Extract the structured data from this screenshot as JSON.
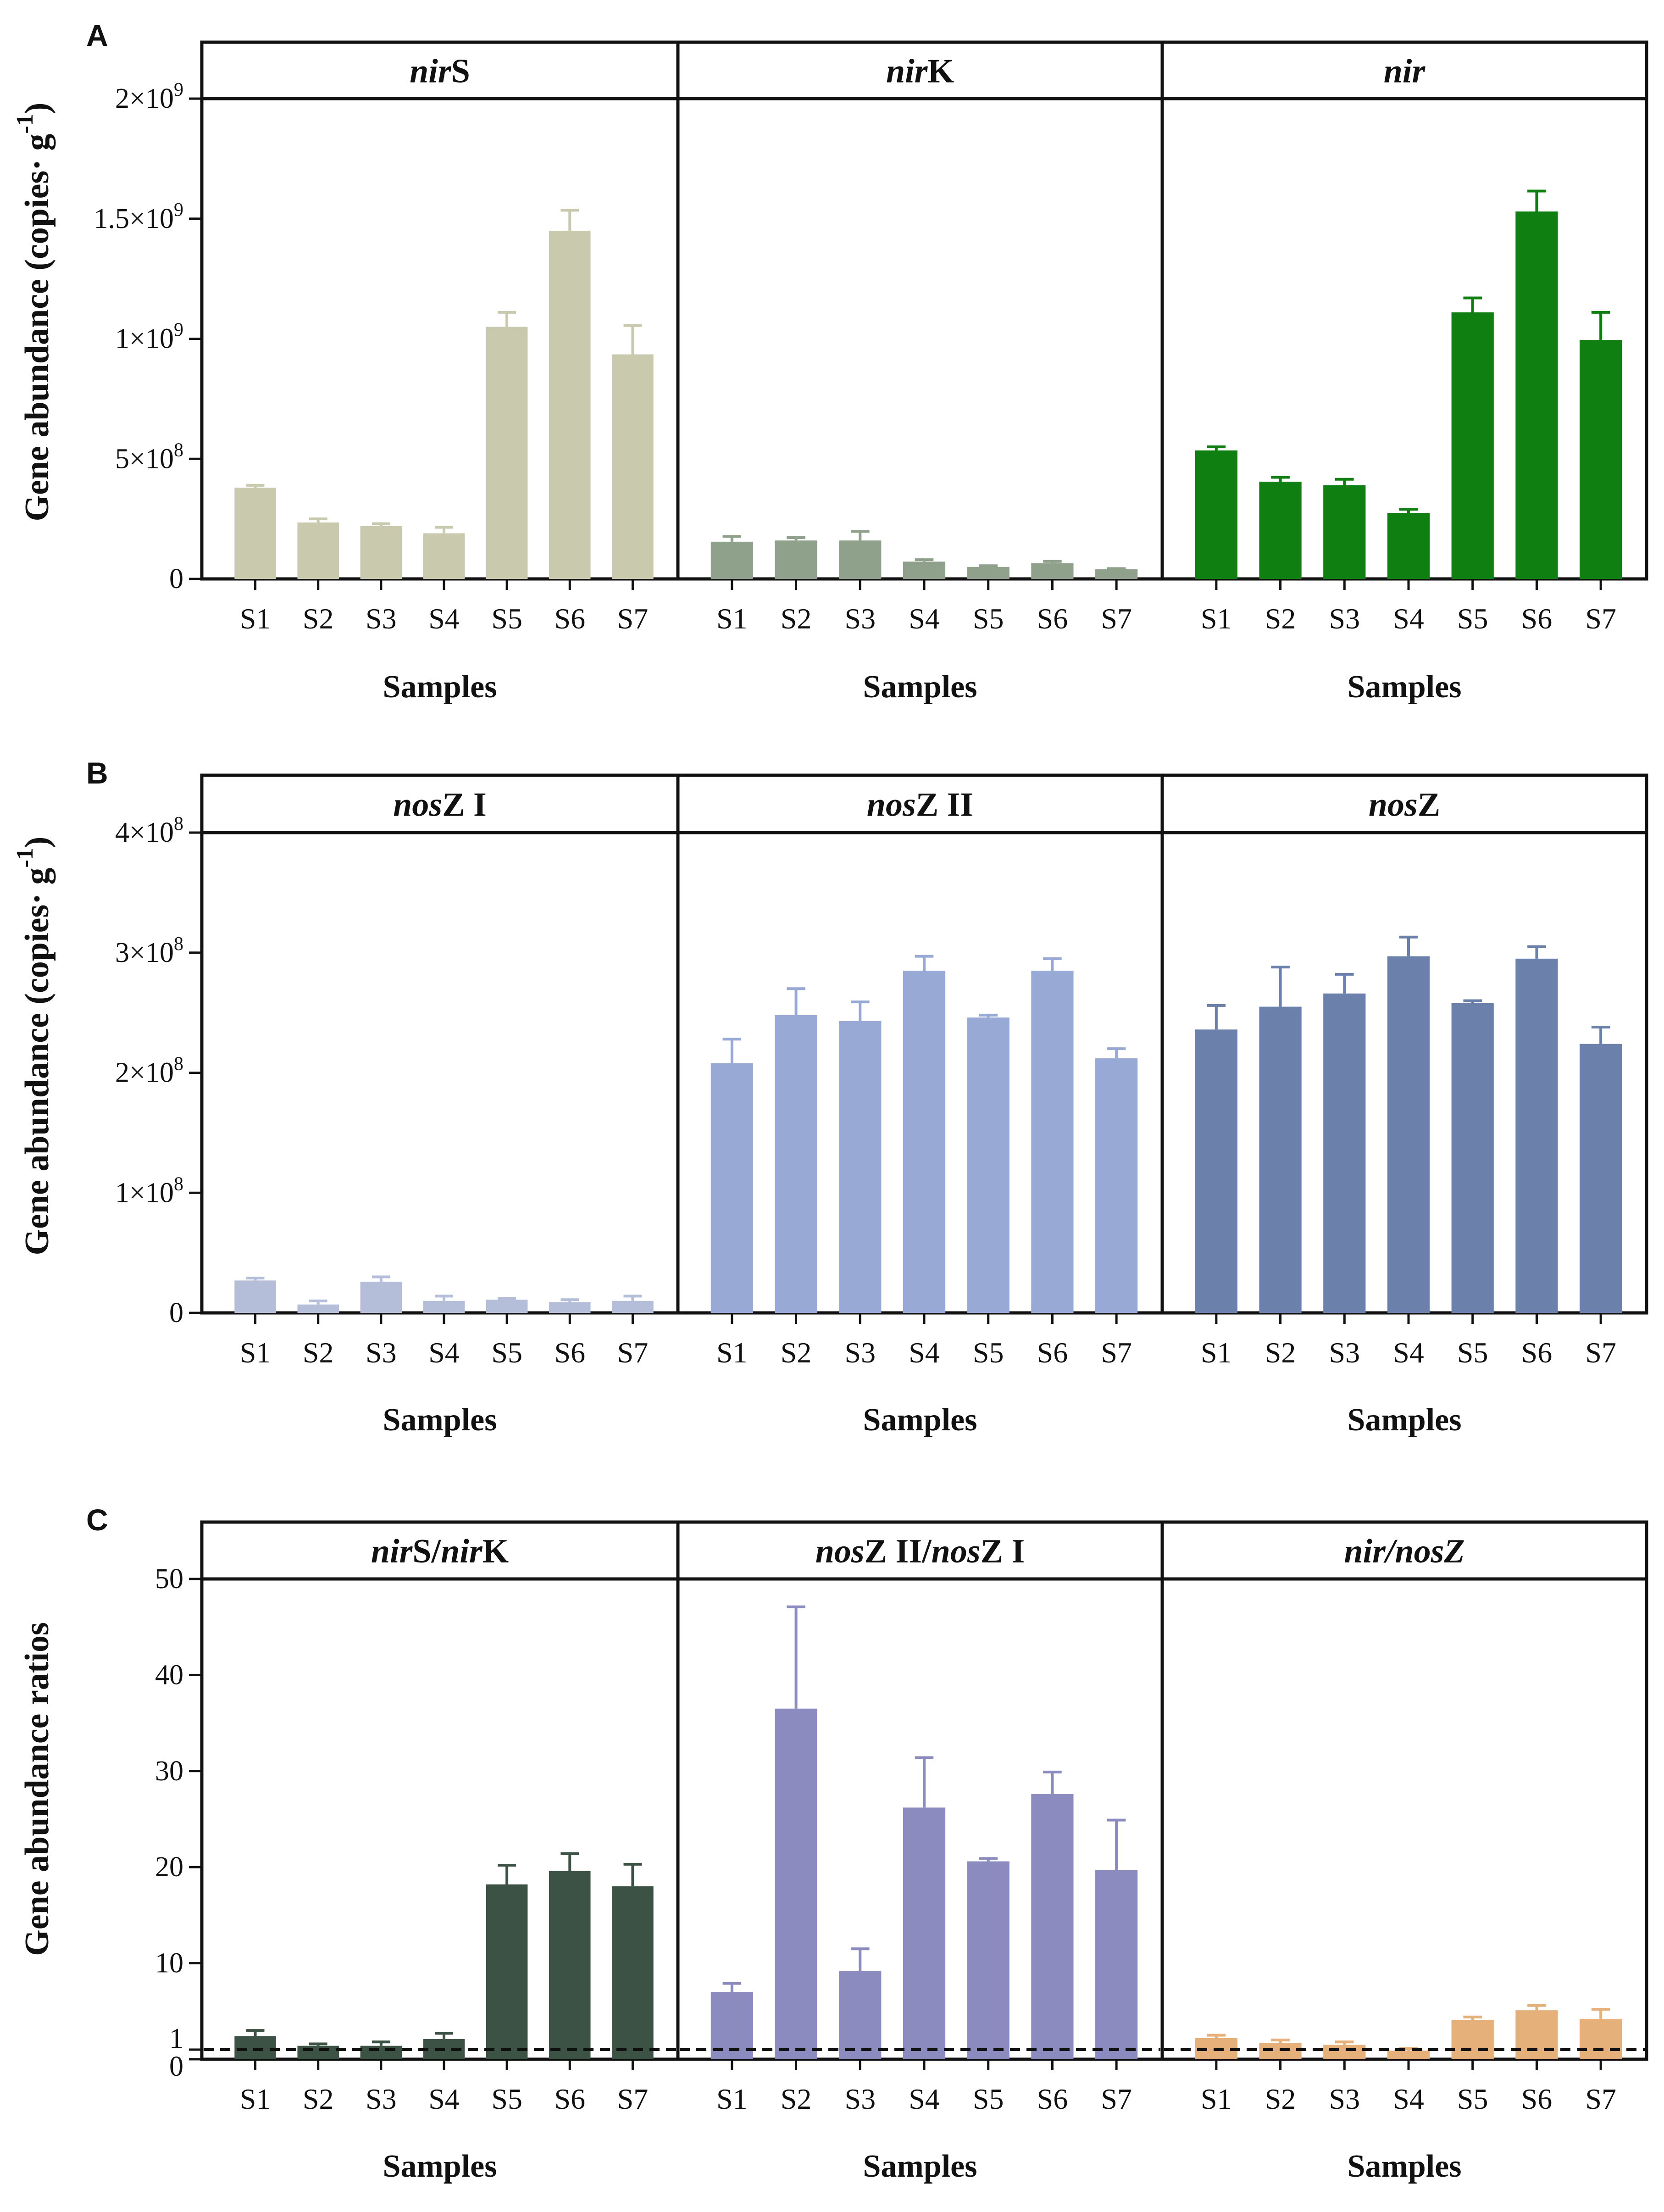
{
  "chart_data": [
    {
      "type": "bar",
      "panel": "A",
      "ylabel_main": "Gene abundance (copies· g",
      "ylabel_sup": "-1",
      "ylabel_close": ")",
      "ylim": [
        0,
        2000000000
      ],
      "yticks": [
        {
          "value": 0,
          "base": "0",
          "exp": ""
        },
        {
          "value": 500000000,
          "base": "5×10",
          "exp": "8"
        },
        {
          "value": 1000000000,
          "base": "1×10",
          "exp": "9"
        },
        {
          "value": 1500000000,
          "base": "1.5×10",
          "exp": "9"
        },
        {
          "value": 2000000000,
          "base": "2×10",
          "exp": "9"
        }
      ],
      "categories": [
        "S1",
        "S2",
        "S3",
        "S4",
        "S5",
        "S6",
        "S7"
      ],
      "xlabel": "Samples",
      "series": [
        {
          "name": "nirS",
          "label_italic": "nir",
          "label_plain": "S",
          "color": "#c9c9ad",
          "values": [
            380000000,
            235000000,
            220000000,
            190000000,
            1050000000,
            1450000000,
            935000000
          ],
          "errors": [
            10000000,
            15000000,
            10000000,
            25000000,
            60000000,
            85000000,
            120000000
          ]
        },
        {
          "name": "nirK",
          "label_italic": "nir",
          "label_plain": "K",
          "color": "#8fa08b",
          "values": [
            155000000,
            160000000,
            160000000,
            72000000,
            50000000,
            65000000,
            40000000
          ],
          "errors": [
            22000000,
            12000000,
            38000000,
            8000000,
            5000000,
            8000000,
            3000000
          ]
        },
        {
          "name": "nir",
          "label_italic": "nir",
          "label_plain": "",
          "color": "#0f7f12",
          "values": [
            535000000,
            405000000,
            390000000,
            275000000,
            1110000000,
            1530000000,
            995000000
          ],
          "errors": [
            15000000,
            18000000,
            25000000,
            15000000,
            60000000,
            85000000,
            115000000
          ]
        }
      ]
    },
    {
      "type": "bar",
      "panel": "B",
      "ylabel_main": "Gene abundance (copies· g",
      "ylabel_sup": "-1",
      "ylabel_close": ")",
      "ylim": [
        0,
        400000000
      ],
      "yticks": [
        {
          "value": 0,
          "base": "0",
          "exp": ""
        },
        {
          "value": 100000000,
          "base": "1×10",
          "exp": "8"
        },
        {
          "value": 200000000,
          "base": "2×10",
          "exp": "8"
        },
        {
          "value": 300000000,
          "base": "3×10",
          "exp": "8"
        },
        {
          "value": 400000000,
          "base": "4×10",
          "exp": "8"
        }
      ],
      "categories": [
        "S1",
        "S2",
        "S3",
        "S4",
        "S5",
        "S6",
        "S7"
      ],
      "xlabel": "Samples",
      "series": [
        {
          "name": "nosZ I",
          "label_italic": "nos",
          "label_plain": "Z I",
          "color": "#b5bed8",
          "values": [
            27000000,
            7000000,
            26000000,
            10000000,
            11000000,
            9000000,
            10000000
          ],
          "errors": [
            2000000,
            3000000,
            4000000,
            4000000,
            1000000,
            2000000,
            4000000
          ]
        },
        {
          "name": "nosZ II",
          "label_italic": "nos",
          "label_plain": "Z II",
          "color": "#98a9d5",
          "values": [
            208000000,
            248000000,
            243000000,
            285000000,
            246000000,
            285000000,
            212000000
          ],
          "errors": [
            20000000,
            22000000,
            16000000,
            12000000,
            2000000,
            10000000,
            8000000
          ]
        },
        {
          "name": "nosZ",
          "label_italic": "nos",
          "label_plain": "Z",
          "color": "#6b80aa",
          "values": [
            236000000,
            255000000,
            266000000,
            297000000,
            258000000,
            295000000,
            224000000
          ],
          "errors": [
            20000000,
            33000000,
            16000000,
            16000000,
            2000000,
            10000000,
            14000000
          ]
        }
      ]
    },
    {
      "type": "bar",
      "panel": "C",
      "ylabel_main": "Gene abundance ratios",
      "ylabel_sup": "",
      "ylabel_close": "",
      "ylim": [
        0,
        50
      ],
      "yticks": [
        {
          "value": 0,
          "base": "0",
          "exp": ""
        },
        {
          "value": 1,
          "base": "1",
          "exp": ""
        },
        {
          "value": 10,
          "base": "10",
          "exp": ""
        },
        {
          "value": 20,
          "base": "20",
          "exp": ""
        },
        {
          "value": 30,
          "base": "30",
          "exp": ""
        },
        {
          "value": 40,
          "base": "40",
          "exp": ""
        },
        {
          "value": 50,
          "base": "50",
          "exp": ""
        }
      ],
      "reference_line": 1,
      "categories": [
        "S1",
        "S2",
        "S3",
        "S4",
        "S5",
        "S6",
        "S7"
      ],
      "xlabel": "Samples",
      "series": [
        {
          "name": "nirS/nirK",
          "label_parts": [
            {
              "t": "nir",
              "i": true
            },
            {
              "t": "S/",
              "i": false
            },
            {
              "t": "nir",
              "i": true
            },
            {
              "t": "K",
              "i": false
            }
          ],
          "color": "#3c5245",
          "values": [
            2.4,
            1.4,
            1.4,
            2.1,
            18.2,
            19.6,
            18.0
          ],
          "errors": [
            0.6,
            0.2,
            0.4,
            0.6,
            2.0,
            1.8,
            2.3
          ]
        },
        {
          "name": "nosZ II/nosZ I",
          "label_parts": [
            {
              "t": "nos",
              "i": true
            },
            {
              "t": "Z II/",
              "i": false
            },
            {
              "t": "nos",
              "i": true
            },
            {
              "t": "Z I",
              "i": false
            }
          ],
          "color": "#8b8bc0",
          "values": [
            7.0,
            36.5,
            9.2,
            26.2,
            20.6,
            27.6,
            19.7
          ],
          "errors": [
            0.9,
            10.6,
            2.3,
            5.2,
            0.3,
            2.3,
            5.2
          ]
        },
        {
          "name": "nir/nosZ",
          "label_parts": [
            {
              "t": "nir/nosZ",
              "i": true
            }
          ],
          "color": "#e6b07b",
          "values": [
            2.2,
            1.7,
            1.5,
            0.9,
            4.1,
            5.1,
            4.2
          ],
          "errors": [
            0.3,
            0.3,
            0.3,
            0.2,
            0.3,
            0.5,
            1.0
          ]
        }
      ]
    }
  ]
}
